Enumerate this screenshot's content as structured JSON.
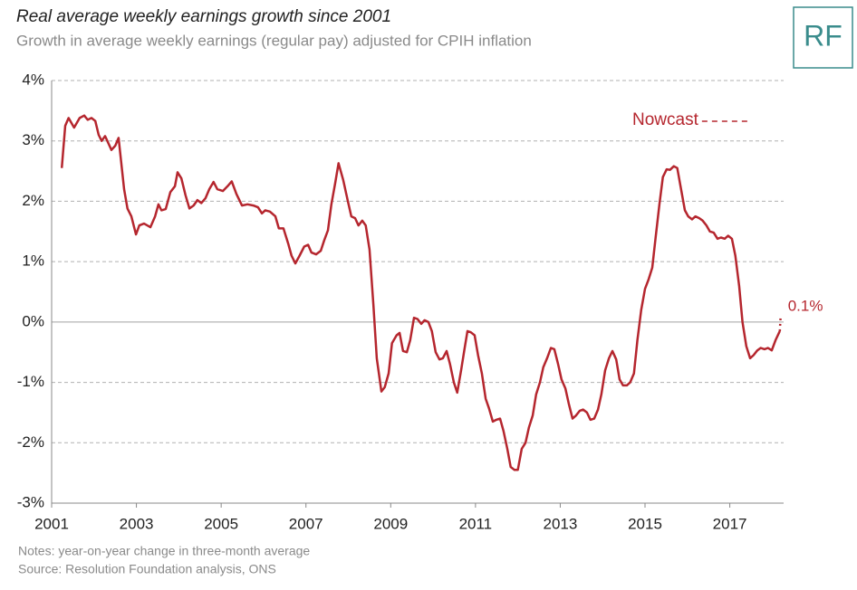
{
  "chart_data": {
    "type": "line",
    "title": "Real average weekly earnings growth since 2001",
    "subtitle": "Growth in average weekly earnings (regular pay) adjusted for CPIH inflation",
    "logo": "RF",
    "notes": "Notes:  year-on-year change in three-month  average",
    "source": "Source: Resolution  Foundation  analysis, ONS",
    "xlim": [
      2001,
      2018.27
    ],
    "xticks": [
      2001,
      2003,
      2005,
      2007,
      2009,
      2011,
      2013,
      2015,
      2017
    ],
    "ylim": [
      -3,
      4
    ],
    "yticks": [
      {
        "value": -3,
        "label": "-3%"
      },
      {
        "value": -2,
        "label": "-2%"
      },
      {
        "value": -1,
        "label": "-1%"
      },
      {
        "value": 0,
        "label": "0%"
      },
      {
        "value": 1,
        "label": "1%"
      },
      {
        "value": 2,
        "label": "2%"
      },
      {
        "value": 3,
        "label": "3%"
      },
      {
        "value": 4,
        "label": "4%"
      }
    ],
    "grid": true,
    "series": [
      {
        "color": "#b5262e",
        "x": [
          2001.24,
          2001.32,
          2001.4,
          2001.53,
          2001.66,
          2001.77,
          2001.85,
          2001.94,
          2002.03,
          2002.11,
          2002.18,
          2002.26,
          2002.41,
          2002.5,
          2002.58,
          2002.71,
          2002.79,
          2002.88,
          2002.99,
          2003.07,
          2003.18,
          2003.33,
          2003.44,
          2003.52,
          2003.59,
          2003.69,
          2003.8,
          2003.91,
          2003.97,
          2004.06,
          2004.16,
          2004.25,
          2004.35,
          2004.44,
          2004.53,
          2004.63,
          2004.72,
          2004.82,
          2004.91,
          2005.04,
          2005.15,
          2005.25,
          2005.36,
          2005.49,
          2005.62,
          2005.76,
          2005.87,
          2005.96,
          2006.04,
          2006.15,
          2006.28,
          2006.36,
          2006.47,
          2006.58,
          2006.66,
          2006.75,
          2006.85,
          2006.96,
          2007.05,
          2007.13,
          2007.24,
          2007.35,
          2007.43,
          2007.52,
          2007.6,
          2007.69,
          2007.77,
          2007.88,
          2007.99,
          2008.07,
          2008.16,
          2008.24,
          2008.33,
          2008.41,
          2008.5,
          2008.59,
          2008.67,
          2008.78,
          2008.86,
          2008.95,
          2009.03,
          2009.14,
          2009.21,
          2009.29,
          2009.38,
          2009.46,
          2009.55,
          2009.63,
          2009.72,
          2009.8,
          2009.89,
          2009.97,
          2010.06,
          2010.15,
          2010.23,
          2010.32,
          2010.4,
          2010.49,
          2010.57,
          2010.66,
          2010.74,
          2010.81,
          2010.89,
          2010.98,
          2011.06,
          2011.15,
          2011.24,
          2011.32,
          2011.41,
          2011.49,
          2011.58,
          2011.66,
          2011.75,
          2011.83,
          2011.92,
          2012.0,
          2012.09,
          2012.18,
          2012.26,
          2012.35,
          2012.43,
          2012.52,
          2012.6,
          2012.69,
          2012.78,
          2012.86,
          2012.95,
          2013.03,
          2013.12,
          2013.2,
          2013.29,
          2013.37,
          2013.46,
          2013.54,
          2013.63,
          2013.71,
          2013.8,
          2013.89,
          2013.97,
          2014.06,
          2014.15,
          2014.23,
          2014.32,
          2014.4,
          2014.48,
          2014.57,
          2014.65,
          2014.74,
          2014.82,
          2014.91,
          2015.0,
          2015.08,
          2015.17,
          2015.25,
          2015.34,
          2015.42,
          2015.51,
          2015.59,
          2015.68,
          2015.76,
          2015.85,
          2015.94,
          2016.02,
          2016.11,
          2016.19,
          2016.28,
          2016.36,
          2016.45,
          2016.53,
          2016.62,
          2016.71,
          2016.79,
          2016.88,
          2016.96,
          2017.05,
          2017.13,
          2017.22,
          2017.3,
          2017.39,
          2017.48,
          2017.56,
          2017.65,
          2017.73,
          2017.82,
          2017.9,
          2017.99,
          2018.08,
          2018.18
        ],
        "values": [
          2.55,
          3.25,
          3.38,
          3.22,
          3.38,
          3.42,
          3.35,
          3.38,
          3.33,
          3.1,
          3.0,
          3.08,
          2.85,
          2.92,
          3.05,
          2.2,
          1.88,
          1.75,
          1.45,
          1.6,
          1.63,
          1.57,
          1.75,
          1.95,
          1.85,
          1.87,
          2.15,
          2.25,
          2.48,
          2.38,
          2.1,
          1.88,
          1.93,
          2.02,
          1.97,
          2.05,
          2.2,
          2.32,
          2.2,
          2.17,
          2.25,
          2.33,
          2.12,
          1.93,
          1.95,
          1.93,
          1.9,
          1.8,
          1.85,
          1.83,
          1.75,
          1.55,
          1.55,
          1.3,
          1.1,
          0.97,
          1.1,
          1.25,
          1.28,
          1.15,
          1.12,
          1.18,
          1.35,
          1.52,
          1.95,
          2.3,
          2.63,
          2.35,
          2.0,
          1.75,
          1.72,
          1.6,
          1.68,
          1.6,
          1.2,
          0.3,
          -0.6,
          -1.15,
          -1.08,
          -0.85,
          -0.35,
          -0.22,
          -0.18,
          -0.48,
          -0.5,
          -0.3,
          0.07,
          0.05,
          -0.03,
          0.03,
          0.0,
          -0.15,
          -0.5,
          -0.62,
          -0.6,
          -0.48,
          -0.7,
          -1.0,
          -1.17,
          -0.8,
          -0.45,
          -0.15,
          -0.17,
          -0.22,
          -0.55,
          -0.85,
          -1.27,
          -1.43,
          -1.65,
          -1.62,
          -1.6,
          -1.8,
          -2.1,
          -2.4,
          -2.45,
          -2.45,
          -2.1,
          -2.0,
          -1.75,
          -1.55,
          -1.2,
          -1.0,
          -0.75,
          -0.6,
          -0.43,
          -0.45,
          -0.7,
          -0.95,
          -1.1,
          -1.35,
          -1.6,
          -1.55,
          -1.47,
          -1.45,
          -1.5,
          -1.62,
          -1.6,
          -1.45,
          -1.2,
          -0.8,
          -0.6,
          -0.48,
          -0.62,
          -0.95,
          -1.05,
          -1.05,
          -1.0,
          -0.85,
          -0.3,
          0.2,
          0.55,
          0.7,
          0.9,
          1.4,
          1.95,
          2.4,
          2.53,
          2.52,
          2.58,
          2.55,
          2.2,
          1.85,
          1.75,
          1.7,
          1.75,
          1.72,
          1.68,
          1.6,
          1.5,
          1.48,
          1.38,
          1.4,
          1.38,
          1.43,
          1.38,
          1.1,
          0.6,
          0.0,
          -0.4,
          -0.6,
          -0.55,
          -0.47,
          -0.43,
          -0.45,
          -0.43,
          -0.47,
          -0.3,
          -0.15
        ]
      },
      {
        "name": "Nowcast",
        "color": "#b5262e",
        "dashed": true,
        "x": [
          2018.18,
          2018.2
        ],
        "values": [
          -0.15,
          0.1
        ],
        "value_labels": [
          null,
          "0.1%"
        ]
      }
    ]
  }
}
